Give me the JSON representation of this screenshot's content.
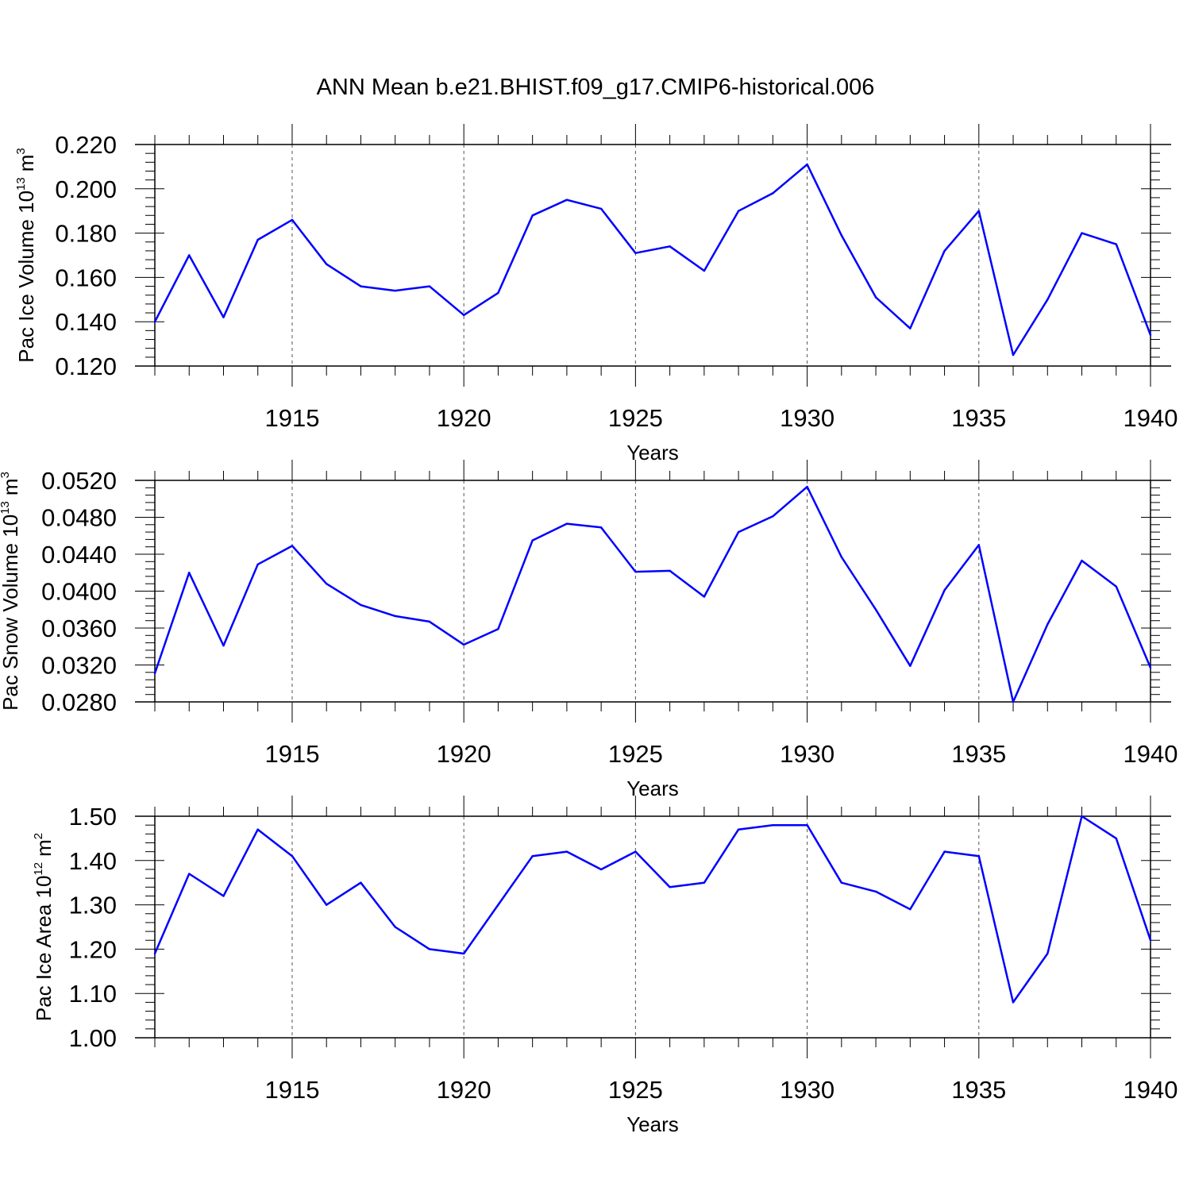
{
  "title": "ANN Mean b.e21.BHIST.f09_g17.CMIP6-historical.006",
  "colors": {
    "line": "#0000ff",
    "axis": "#000000",
    "grid": "#555555"
  },
  "chart_data": [
    {
      "type": "line",
      "xlabel": "Years",
      "ylabel": {
        "text": "Pac Ice Volume 10",
        "sup": "13",
        "unit": "m",
        "unit_sup": "3"
      },
      "xlim": [
        1911,
        1940
      ],
      "ylim": [
        0.12,
        0.22
      ],
      "x_ticks": [
        "1915",
        "1920",
        "1925",
        "1930",
        "1935",
        "1940"
      ],
      "y_ticks": [
        "0.120",
        "0.140",
        "0.160",
        "0.180",
        "0.200",
        "0.220"
      ],
      "grid": "vertical dashed at labeled years",
      "x": [
        1911,
        1912,
        1913,
        1914,
        1915,
        1916,
        1917,
        1918,
        1919,
        1920,
        1921,
        1922,
        1923,
        1924,
        1925,
        1926,
        1927,
        1928,
        1929,
        1930,
        1931,
        1932,
        1933,
        1934,
        1935,
        1936,
        1937,
        1938,
        1939,
        1940
      ],
      "values": [
        0.14,
        0.17,
        0.142,
        0.177,
        0.186,
        0.166,
        0.156,
        0.154,
        0.156,
        0.143,
        0.153,
        0.188,
        0.195,
        0.191,
        0.171,
        0.174,
        0.163,
        0.19,
        0.198,
        0.211,
        0.179,
        0.151,
        0.137,
        0.172,
        0.19,
        0.125,
        0.15,
        0.18,
        0.175,
        0.134
      ]
    },
    {
      "type": "line",
      "xlabel": "Years",
      "ylabel": {
        "text": "Pac Snow Volume 10",
        "sup": "13",
        "unit": "m",
        "unit_sup": "3"
      },
      "xlim": [
        1911,
        1940
      ],
      "ylim": [
        0.028,
        0.052
      ],
      "x_ticks": [
        "1915",
        "1920",
        "1925",
        "1930",
        "1935",
        "1940"
      ],
      "y_ticks": [
        "0.0280",
        "0.0320",
        "0.0360",
        "0.0400",
        "0.0440",
        "0.0480",
        "0.0520"
      ],
      "grid": "vertical dashed at labeled years",
      "x": [
        1911,
        1912,
        1913,
        1914,
        1915,
        1916,
        1917,
        1918,
        1919,
        1920,
        1921,
        1922,
        1923,
        1924,
        1925,
        1926,
        1927,
        1928,
        1929,
        1930,
        1931,
        1932,
        1933,
        1934,
        1935,
        1936,
        1937,
        1938,
        1939,
        1940
      ],
      "values": [
        0.0311,
        0.042,
        0.0341,
        0.0429,
        0.0449,
        0.0408,
        0.0385,
        0.0373,
        0.0367,
        0.0342,
        0.0359,
        0.0455,
        0.0473,
        0.0469,
        0.0421,
        0.0422,
        0.0394,
        0.0464,
        0.0481,
        0.0513,
        0.0437,
        0.038,
        0.0319,
        0.0401,
        0.045,
        0.028,
        0.0364,
        0.0433,
        0.0405,
        0.0317
      ]
    },
    {
      "type": "line",
      "xlabel": "Years",
      "ylabel": {
        "text": "Pac Ice Area 10",
        "sup": "12",
        "unit": "m",
        "unit_sup": "2"
      },
      "xlim": [
        1911,
        1940
      ],
      "ylim": [
        1.0,
        1.5
      ],
      "x_ticks": [
        "1915",
        "1920",
        "1925",
        "1930",
        "1935",
        "1940"
      ],
      "y_ticks": [
        "1.00",
        "1.10",
        "1.20",
        "1.30",
        "1.40",
        "1.50"
      ],
      "grid": "vertical dashed at labeled years",
      "x": [
        1911,
        1912,
        1913,
        1914,
        1915,
        1916,
        1917,
        1918,
        1919,
        1920,
        1921,
        1922,
        1923,
        1924,
        1925,
        1926,
        1927,
        1928,
        1929,
        1930,
        1931,
        1932,
        1933,
        1934,
        1935,
        1936,
        1937,
        1938,
        1939,
        1940
      ],
      "values": [
        1.19,
        1.37,
        1.32,
        1.47,
        1.41,
        1.3,
        1.35,
        1.25,
        1.2,
        1.19,
        1.3,
        1.41,
        1.42,
        1.38,
        1.42,
        1.34,
        1.35,
        1.47,
        1.48,
        1.48,
        1.35,
        1.33,
        1.29,
        1.42,
        1.41,
        1.08,
        1.19,
        1.5,
        1.45,
        1.22
      ]
    }
  ]
}
